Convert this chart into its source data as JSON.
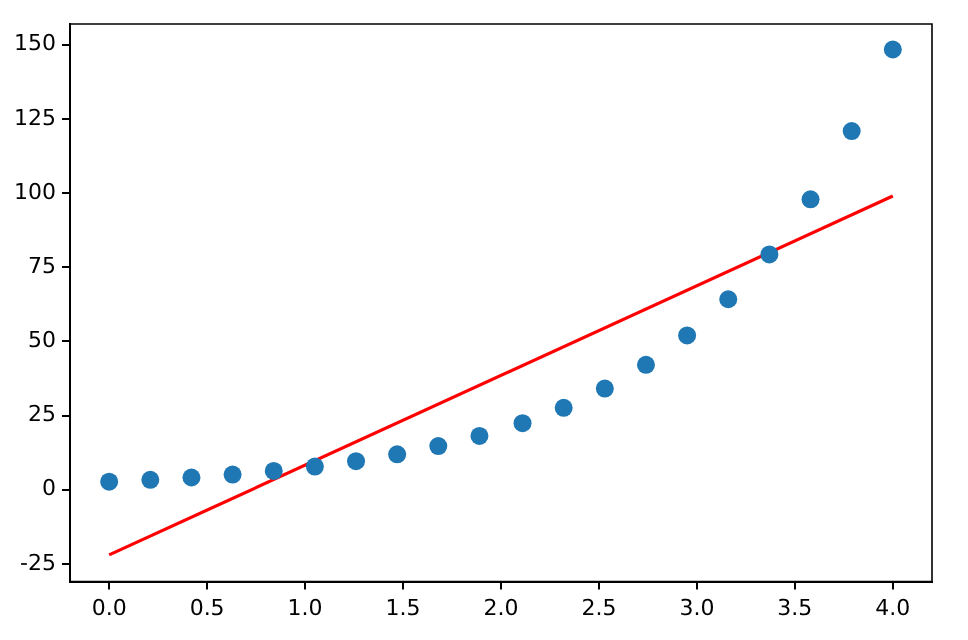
{
  "chart_data": {
    "type": "scatter",
    "x": [
      0,
      0.21,
      0.42,
      0.63,
      0.84,
      1.05,
      1.26,
      1.47,
      1.68,
      1.89,
      2.11,
      2.32,
      2.53,
      2.74,
      2.95,
      3.16,
      3.37,
      3.58,
      3.79,
      4.0
    ],
    "series": [
      {
        "color": "#1f77b4",
        "marker": "circle",
        "values": [
          2.7,
          3.3,
          4.1,
          5.1,
          6.3,
          7.8,
          9.6,
          11.9,
          14.7,
          18.1,
          22.4,
          27.6,
          34.1,
          42.1,
          52.0,
          64.2,
          79.3,
          97.9,
          120.9,
          148.4
        ]
      },
      {
        "type": "line",
        "color": "#ff0000",
        "x": [
          0,
          4
        ],
        "values": [
          -22,
          99
        ]
      }
    ],
    "grid": false,
    "legend": false,
    "xlim": [
      -0.2,
      4.2
    ],
    "ylim": [
      -31,
      157
    ],
    "xticks": [
      {
        "value": 0,
        "label": "0.0"
      },
      {
        "value": 0.5,
        "label": "0.5"
      },
      {
        "value": 1,
        "label": "1.0"
      },
      {
        "value": 1.5,
        "label": "1.5"
      },
      {
        "value": 2,
        "label": "2.0"
      },
      {
        "value": 2.5,
        "label": "2.5"
      },
      {
        "value": 3,
        "label": "3.0"
      },
      {
        "value": 3.5,
        "label": "3.5"
      },
      {
        "value": 4,
        "label": "4.0"
      }
    ],
    "yticks": [
      -25,
      0,
      25,
      50,
      75,
      100,
      125,
      150
    ]
  }
}
